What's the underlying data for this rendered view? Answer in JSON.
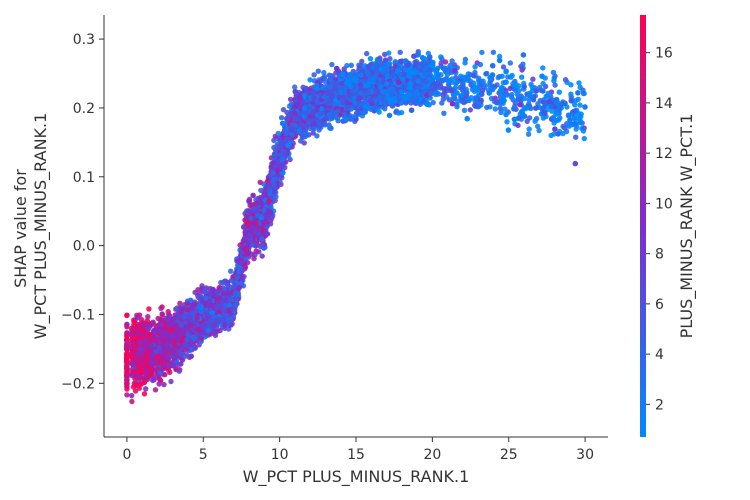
{
  "chart_data": {
    "type": "scatter",
    "title": "",
    "xlabel": "W_PCT PLUS_MINUS_RANK.1",
    "ylabel_lines": [
      "SHAP value for",
      "W_PCT PLUS_MINUS_RANK.1"
    ],
    "xlim": [
      -1.5,
      31.5
    ],
    "ylim": [
      -0.278,
      0.335
    ],
    "x_ticks": [
      0,
      5,
      10,
      15,
      20,
      25,
      30
    ],
    "y_ticks": [
      -0.2,
      -0.1,
      0.0,
      0.1,
      0.2,
      0.3
    ],
    "y_tick_labels": [
      "−0.2",
      "−0.1",
      "0.0",
      "0.1",
      "0.2",
      "0.3"
    ],
    "grid": false,
    "colorbar": {
      "label": "PLUS_MINUS_RANK W_PCT.1",
      "range": [
        0.7,
        17.5
      ],
      "ticks": [
        2,
        4,
        6,
        8,
        10,
        12,
        14,
        16
      ],
      "low_color": "#008afb",
      "mid_color": "#7e2ecd",
      "high_color": "#ff0052"
    },
    "trend": [
      {
        "x": 0,
        "y": -0.16,
        "spread": 0.05,
        "color": 14.5
      },
      {
        "x": 1,
        "y": -0.155,
        "spread": 0.05,
        "color": 13.5
      },
      {
        "x": 2,
        "y": -0.15,
        "spread": 0.045,
        "color": 11.5
      },
      {
        "x": 3,
        "y": -0.14,
        "spread": 0.04,
        "color": 10
      },
      {
        "x": 4,
        "y": -0.12,
        "spread": 0.035,
        "color": 8.5
      },
      {
        "x": 5,
        "y": -0.1,
        "spread": 0.035,
        "color": 7.5
      },
      {
        "x": 6,
        "y": -0.09,
        "spread": 0.03,
        "color": 7
      },
      {
        "x": 7,
        "y": -0.08,
        "spread": 0.03,
        "color": 6.5
      },
      {
        "x": 8,
        "y": 0.03,
        "spread": 0.04,
        "color": 9
      },
      {
        "x": 9,
        "y": 0.04,
        "spread": 0.04,
        "color": 8
      },
      {
        "x": 10,
        "y": 0.13,
        "spread": 0.04,
        "color": 6.5
      },
      {
        "x": 11,
        "y": 0.19,
        "spread": 0.035,
        "color": 6
      },
      {
        "x": 12,
        "y": 0.2,
        "spread": 0.035,
        "color": 5.5
      },
      {
        "x": 13,
        "y": 0.21,
        "spread": 0.035,
        "color": 5
      },
      {
        "x": 15,
        "y": 0.225,
        "spread": 0.035,
        "color": 4
      },
      {
        "x": 17,
        "y": 0.235,
        "spread": 0.035,
        "color": 3.5
      },
      {
        "x": 20,
        "y": 0.24,
        "spread": 0.035,
        "color": 3
      },
      {
        "x": 25,
        "y": 0.22,
        "spread": 0.045,
        "color": 2.5
      },
      {
        "x": 30,
        "y": 0.19,
        "spread": 0.05,
        "color": 2
      }
    ],
    "point_count": 6500
  }
}
